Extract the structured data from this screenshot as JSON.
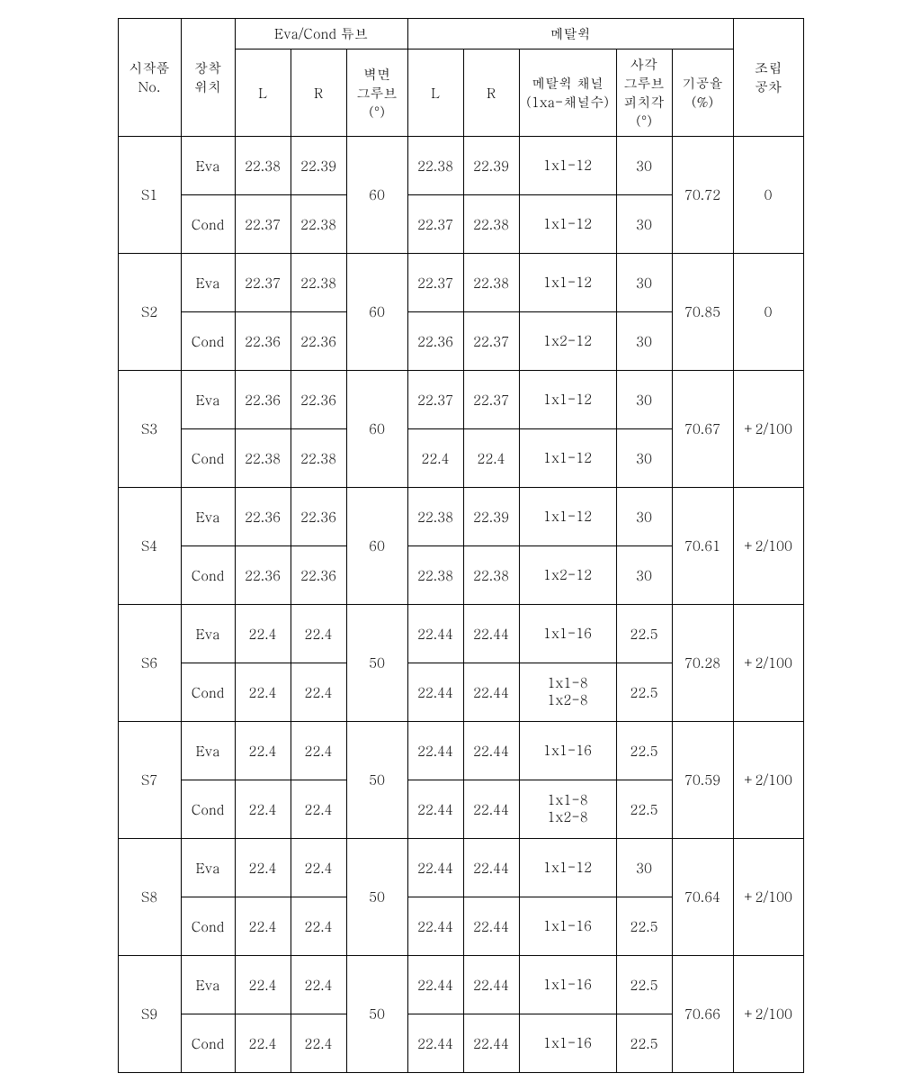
{
  "header": {
    "sample_no": "시작품\nNo.",
    "position": "장착\n위치",
    "tube_group": "Eva/Cond 튜브",
    "tube_L": "L",
    "tube_R": "R",
    "wall_groove": "벽면\n그루브\n(°)",
    "wick_group": "메탈윅",
    "wick_L": "L",
    "wick_R": "R",
    "wick_channel": "메탈윅 채널\n(1xa-채널수)",
    "pitch_angle": "사각\n그루브\n피치각\n(°)",
    "porosity": "기공율\n(%)",
    "tolerance": "조립\n공차"
  },
  "rows": [
    {
      "id": "S1",
      "groove": "60",
      "porosity": "70.72",
      "tolerance": "0",
      "eva": {
        "pos": "Eva",
        "tL": "22.38",
        "tR": "22.39",
        "wL": "22.38",
        "wR": "22.39",
        "chan": "1x1-12",
        "pitch": "30"
      },
      "cond": {
        "pos": "Cond",
        "tL": "22.37",
        "tR": "22.38",
        "wL": "22.37",
        "wR": "22.38",
        "chan": "1x1-12",
        "pitch": "30"
      }
    },
    {
      "id": "S2",
      "groove": "60",
      "porosity": "70.85",
      "tolerance": "0",
      "eva": {
        "pos": "Eva",
        "tL": "22.37",
        "tR": "22.38",
        "wL": "22.37",
        "wR": "22.38",
        "chan": "1x1-12",
        "pitch": "30"
      },
      "cond": {
        "pos": "Cond",
        "tL": "22.36",
        "tR": "22.36",
        "wL": "22.36",
        "wR": "22.37",
        "chan": "1x2-12",
        "pitch": "30"
      }
    },
    {
      "id": "S3",
      "groove": "60",
      "porosity": "70.67",
      "tolerance": "+2/100",
      "eva": {
        "pos": "Eva",
        "tL": "22.36",
        "tR": "22.36",
        "wL": "22.37",
        "wR": "22.37",
        "chan": "1x1-12",
        "pitch": "30"
      },
      "cond": {
        "pos": "Cond",
        "tL": "22.38",
        "tR": "22.38",
        "wL": "22.4",
        "wR": "22.4",
        "chan": "1x1-12",
        "pitch": "30"
      }
    },
    {
      "id": "S4",
      "groove": "60",
      "porosity": "70.61",
      "tolerance": "+2/100",
      "eva": {
        "pos": "Eva",
        "tL": "22.36",
        "tR": "22.36",
        "wL": "22.38",
        "wR": "22.39",
        "chan": "1x1-12",
        "pitch": "30"
      },
      "cond": {
        "pos": "Cond",
        "tL": "22.36",
        "tR": "22.36",
        "wL": "22.38",
        "wR": "22.38",
        "chan": "1x2-12",
        "pitch": "30"
      }
    },
    {
      "id": "S6",
      "groove": "50",
      "porosity": "70.28",
      "tolerance": "+2/100",
      "eva": {
        "pos": "Eva",
        "tL": "22.4",
        "tR": "22.4",
        "wL": "22.44",
        "wR": "22.44",
        "chan": "1x1-16",
        "pitch": "22.5"
      },
      "cond": {
        "pos": "Cond",
        "tL": "22.4",
        "tR": "22.4",
        "wL": "22.44",
        "wR": "22.44",
        "chan": "1x1-8\n1x2-8",
        "pitch": "22.5"
      }
    },
    {
      "id": "S7",
      "groove": "50",
      "porosity": "70.59",
      "tolerance": "+2/100",
      "eva": {
        "pos": "Eva",
        "tL": "22.4",
        "tR": "22.4",
        "wL": "22.44",
        "wR": "22.44",
        "chan": "1x1-16",
        "pitch": "22.5"
      },
      "cond": {
        "pos": "Cond",
        "tL": "22.4",
        "tR": "22.4",
        "wL": "22.44",
        "wR": "22.44",
        "chan": "1x1-8\n1x2-8",
        "pitch": "22.5"
      }
    },
    {
      "id": "S8",
      "groove": "50",
      "porosity": "70.64",
      "tolerance": "+2/100",
      "eva": {
        "pos": "Eva",
        "tL": "22.4",
        "tR": "22.4",
        "wL": "22.44",
        "wR": "22.44",
        "chan": "1x1-12",
        "pitch": "30"
      },
      "cond": {
        "pos": "Cond",
        "tL": "22.4",
        "tR": "22.4",
        "wL": "22.44",
        "wR": "22.44",
        "chan": "1x1-16",
        "pitch": "22.5"
      }
    },
    {
      "id": "S9",
      "groove": "50",
      "porosity": "70.66",
      "tolerance": "+2/100",
      "eva": {
        "pos": "Eva",
        "tL": "22.4",
        "tR": "22.4",
        "wL": "22.44",
        "wR": "22.44",
        "chan": "1x1-16",
        "pitch": "22.5"
      },
      "cond": {
        "pos": "Cond",
        "tL": "22.4",
        "tR": "22.4",
        "wL": "22.44",
        "wR": "22.44",
        "chan": "1x1-16",
        "pitch": "22.5"
      }
    }
  ]
}
